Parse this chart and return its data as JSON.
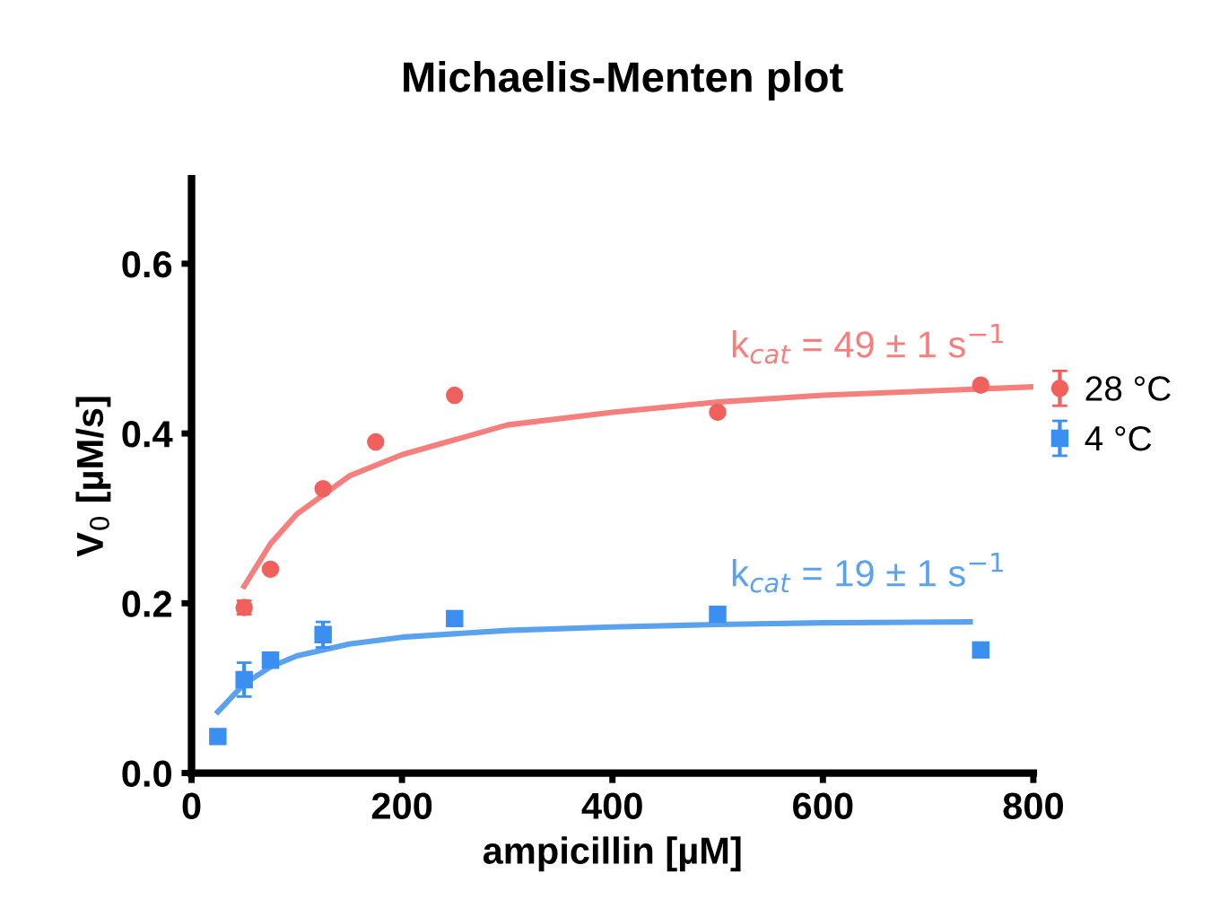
{
  "chart_data": {
    "type": "scatter",
    "title": "Michaelis-Menten plot",
    "xlabel": "ampicillin [µM]",
    "ylabel": "V$_{0}$ [µM/s]",
    "series": [
      {
        "name": "28 °C",
        "color": "#f0605d",
        "marker": "circle",
        "x": [
          50,
          75,
          125,
          175,
          250,
          500,
          750
        ],
        "values": [
          0.195,
          0.24,
          0.335,
          0.39,
          0.445,
          0.425,
          0.457
        ],
        "errors": [
          0.008,
          null,
          null,
          null,
          null,
          null,
          null
        ]
      },
      {
        "name": "4 °C",
        "color": "#3b8ff0",
        "marker": "square",
        "x": [
          25,
          50,
          75,
          125,
          250,
          500,
          750
        ],
        "values": [
          0.043,
          0.11,
          0.133,
          0.163,
          0.182,
          0.187,
          0.145
        ],
        "errors": [
          null,
          0.02,
          null,
          0.015,
          null,
          null,
          null
        ]
      },
      {
        "type": "line",
        "color": "#f47f7c",
        "x": [
          50,
          75,
          100,
          150,
          200,
          300,
          400,
          500,
          600,
          700,
          800
        ],
        "values": [
          0.22,
          0.27,
          0.305,
          0.35,
          0.375,
          0.41,
          0.425,
          0.437,
          0.445,
          0.45,
          0.455
        ]
      },
      {
        "type": "line",
        "color": "#5aa2ee",
        "x": [
          25,
          50,
          75,
          100,
          150,
          200,
          300,
          400,
          500,
          600,
          740
        ],
        "values": [
          0.072,
          0.105,
          0.125,
          0.138,
          0.152,
          0.16,
          0.168,
          0.172,
          0.175,
          0.177,
          0.178
        ]
      }
    ],
    "annotations": [
      "k$_{cat}$ = 49 ± 1 s$^{−1}$",
      "k$_{cat}$ = 19 ± 1 s$^{−1}$"
    ],
    "xlim": [
      0,
      800
    ],
    "xticks": [
      0,
      200,
      400,
      600,
      800
    ],
    "ylim": [
      0,
      0.7
    ],
    "yticks": [
      {
        "value": 0,
        "label": "0.0"
      },
      {
        "value": 0.2,
        "label": "0.2"
      },
      {
        "value": 0.4,
        "label": "0.4"
      },
      {
        "value": 0.6,
        "label": "0.6"
      }
    ],
    "grid": false,
    "legend": "right"
  }
}
